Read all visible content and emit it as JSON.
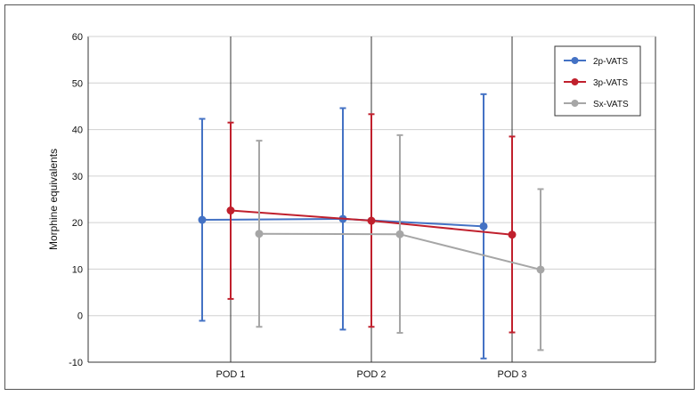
{
  "chart_data": {
    "type": "line",
    "title": "",
    "xlabel": "",
    "ylabel": "Morphine equivalents",
    "categories": [
      "POD 1",
      "POD 2",
      "POD 3"
    ],
    "ylim": [
      -10,
      60
    ],
    "yticks": [
      60,
      50,
      40,
      30,
      20,
      10,
      0,
      -10
    ],
    "grid": true,
    "legend_position": "top-right",
    "error_bars": true,
    "series": [
      {
        "name": "2p-VATS",
        "color": "#4472C4",
        "values": [
          20.6,
          20.8,
          19.2
        ],
        "error_low": [
          -1.1,
          -3.0,
          -9.2
        ],
        "error_high": [
          42.3,
          44.6,
          47.6
        ]
      },
      {
        "name": "3p-VATS",
        "color": "#C0202D",
        "values": [
          22.6,
          20.4,
          17.4
        ],
        "error_low": [
          3.6,
          -2.4,
          -3.6
        ],
        "error_high": [
          41.5,
          43.3,
          38.5
        ]
      },
      {
        "name": "Sx-VATS",
        "color": "#A6A6A6",
        "values": [
          17.6,
          17.5,
          9.9
        ],
        "error_low": [
          -2.4,
          -3.7,
          -7.4
        ],
        "error_high": [
          37.6,
          38.8,
          27.2
        ]
      }
    ]
  }
}
